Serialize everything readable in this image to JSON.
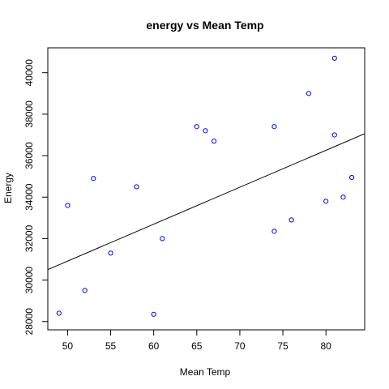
{
  "chart_data": {
    "type": "scatter",
    "title": "energy vs Mean Temp",
    "xlabel": "Mean Temp",
    "ylabel": "Energy",
    "xlim": [
      47.7,
      84.5
    ],
    "ylim": [
      27600,
      41200
    ],
    "xticks": [
      50,
      55,
      60,
      65,
      70,
      75,
      80
    ],
    "yticks": [
      28000,
      30000,
      32000,
      34000,
      36000,
      38000,
      40000
    ],
    "grid": false,
    "point_color": "#0000ff",
    "line_color": "#000000",
    "points": [
      {
        "x": 49,
        "y": 28400
      },
      {
        "x": 50,
        "y": 33600
      },
      {
        "x": 52,
        "y": 29500
      },
      {
        "x": 53,
        "y": 34900
      },
      {
        "x": 55,
        "y": 31300
      },
      {
        "x": 58,
        "y": 34500
      },
      {
        "x": 60,
        "y": 28350
      },
      {
        "x": 61,
        "y": 32000
      },
      {
        "x": 65,
        "y": 37400
      },
      {
        "x": 66,
        "y": 37200
      },
      {
        "x": 67,
        "y": 36700
      },
      {
        "x": 74,
        "y": 37400
      },
      {
        "x": 74,
        "y": 32350
      },
      {
        "x": 76,
        "y": 32900
      },
      {
        "x": 78,
        "y": 39000
      },
      {
        "x": 80,
        "y": 33800
      },
      {
        "x": 81,
        "y": 40700
      },
      {
        "x": 81,
        "y": 37000
      },
      {
        "x": 82,
        "y": 34000
      },
      {
        "x": 83,
        "y": 34950
      }
    ],
    "regression_line": {
      "intercept": 22010,
      "slope": 178.1
    }
  }
}
